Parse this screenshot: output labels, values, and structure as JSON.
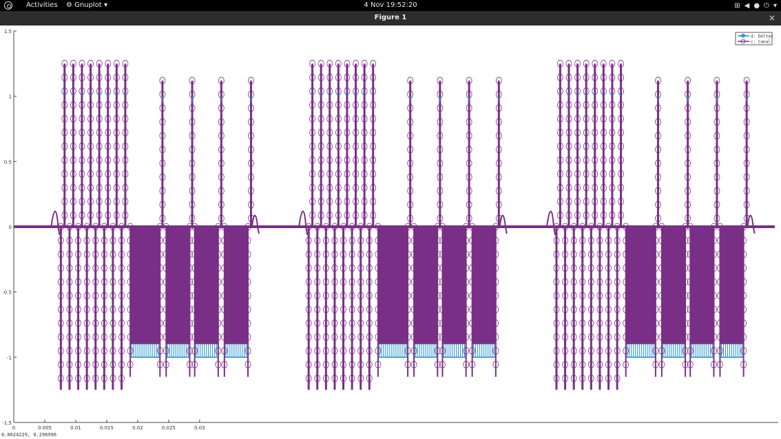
{
  "topbar": {
    "activities": "Activities",
    "app_menu": "Gnuplot",
    "clock": "4 Nov  19:52:20",
    "tray_icons": [
      "network-icon",
      "volume-icon",
      "system-icon",
      "power-icon"
    ]
  },
  "window": {
    "title": "Figure 1",
    "close_label": "×"
  },
  "status": {
    "coords": "0.0024229,  0.296996"
  },
  "colors": {
    "series_a": "#1f8fc8",
    "series_b": "#7a2f86"
  },
  "chart_data": {
    "type": "line",
    "x_ticks": [
      "0",
      "0.005",
      "0.01",
      "0.015",
      "0.02",
      "0.025",
      "0.03"
    ],
    "y_ticks": [
      "1.5",
      "1",
      "0.5",
      "0",
      "-0.5",
      "-1",
      "-1.5"
    ],
    "ylim": [
      -1.5,
      1.5
    ],
    "legend_position": "top-right",
    "series": [
      {
        "name": "d: Deltas",
        "marker": "star",
        "color": "#1f8fc8"
      },
      {
        "name": "c: Canal",
        "marker": "circle",
        "color": "#7a2f86"
      }
    ],
    "bursts": [
      {
        "pos_lines": [
          0.0082,
          0.0096,
          0.011,
          0.0124,
          0.0138,
          0.0152,
          0.0166,
          0.018
        ],
        "neg_lines": [
          0.0076,
          0.009,
          0.0104,
          0.0118,
          0.0132,
          0.0146,
          0.016,
          0.0174
        ],
        "pos_spikes": [
          0.024,
          0.0288,
          0.0335,
          0.0383
        ],
        "neg_blocks": [
          [
            0.0188,
            0.0236
          ],
          [
            0.0246,
            0.0284
          ],
          [
            0.0292,
            0.033
          ],
          [
            0.034,
            0.0378
          ]
        ]
      },
      {
        "pos_lines": [
          0.0482,
          0.0496,
          0.051,
          0.0524,
          0.0538,
          0.0552,
          0.0566,
          0.058
        ],
        "neg_lines": [
          0.0476,
          0.049,
          0.0504,
          0.0518,
          0.0532,
          0.0546,
          0.056,
          0.0574
        ],
        "pos_spikes": [
          0.064,
          0.0688,
          0.0735,
          0.0783
        ],
        "neg_blocks": [
          [
            0.0588,
            0.0636
          ],
          [
            0.0646,
            0.0684
          ],
          [
            0.0692,
            0.073
          ],
          [
            0.074,
            0.0778
          ]
        ]
      },
      {
        "pos_lines": [
          0.0882,
          0.0896,
          0.091,
          0.0924,
          0.0938,
          0.0952,
          0.0966,
          0.098
        ],
        "neg_lines": [
          0.0876,
          0.089,
          0.0904,
          0.0918,
          0.0932,
          0.0946,
          0.096,
          0.0974
        ],
        "pos_spikes": [
          0.104,
          0.1088,
          0.1135,
          0.1183
        ],
        "neg_blocks": [
          [
            0.0988,
            0.1036
          ],
          [
            0.1046,
            0.1084
          ],
          [
            0.1092,
            0.113
          ],
          [
            0.114,
            0.1178
          ]
        ]
      }
    ]
  }
}
